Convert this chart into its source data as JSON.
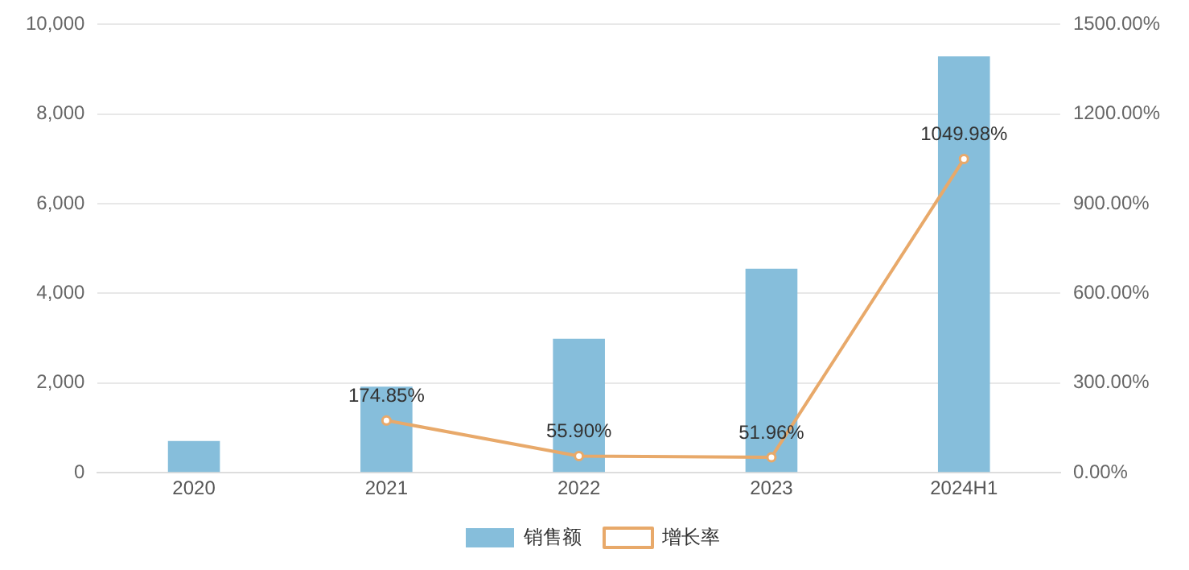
{
  "chart_data": {
    "type": "bar",
    "categories": [
      "2020",
      "2021",
      "2022",
      "2023",
      "2024H1"
    ],
    "series": [
      {
        "name": "销售额",
        "color": "#86bedb",
        "values": [
          710,
          1920,
          2990,
          4550,
          9290
        ]
      },
      {
        "name": "增长率",
        "type": "line",
        "axis": "y2",
        "color": "#e8a96a",
        "marker": "circle",
        "values": [
          null,
          174.85,
          55.9,
          51.96,
          1049.98
        ],
        "value_labels": [
          null,
          "174.85%",
          "55.90%",
          "51.96%",
          "1049.98%"
        ]
      }
    ],
    "ylim": [
      0,
      10000
    ],
    "yticks": [
      0,
      {
        "value": 2000,
        "label": "2,000"
      },
      {
        "value": 4000,
        "label": "4,000"
      },
      {
        "value": 6000,
        "label": "6,000"
      },
      {
        "value": 8000,
        "label": "8,000"
      },
      {
        "value": 10000,
        "label": "10,000"
      }
    ],
    "y2lim": [
      0,
      1500
    ],
    "y2ticks": [
      {
        "value": 0,
        "label": "0.00%"
      },
      {
        "value": 300,
        "label": "300.00%"
      },
      {
        "value": 600,
        "label": "600.00%"
      },
      {
        "value": 900,
        "label": "900.00%"
      },
      {
        "value": 1200,
        "label": "1200.00%"
      },
      {
        "value": 1500,
        "label": "1500.00%"
      }
    ],
    "grid": "y",
    "legend": "bottom"
  }
}
